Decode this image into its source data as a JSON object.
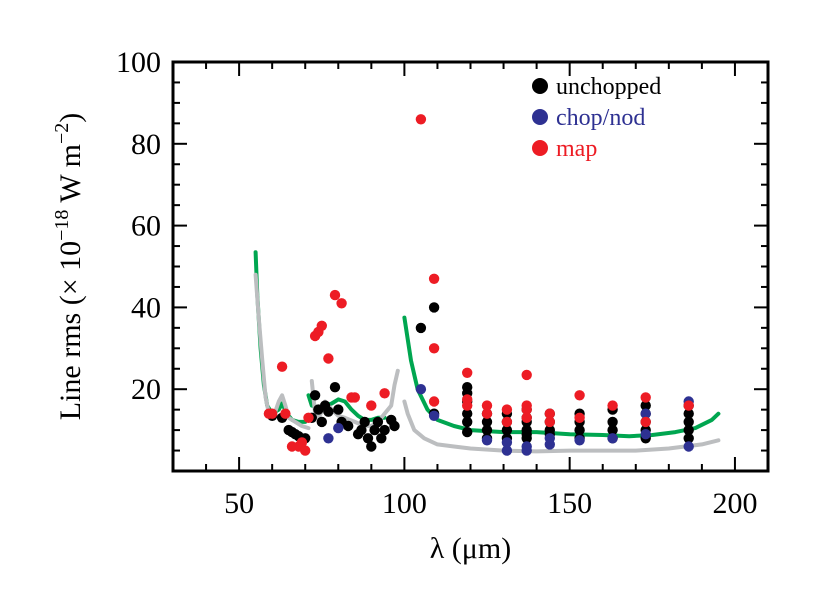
{
  "chart_data": {
    "type": "scatter",
    "xlabel": "λ (μm)",
    "ylabel_parts": {
      "main": "Line rms (× 10",
      "exp1": "−18",
      "mid": " W m",
      "exp2": "−2",
      "end": ")"
    },
    "xlim": [
      30,
      210
    ],
    "ylim": [
      0,
      100
    ],
    "x_ticks": [
      50,
      100,
      150,
      200
    ],
    "y_ticks": [
      20,
      40,
      60,
      80,
      100
    ],
    "y_tick_labels": [
      "20",
      "40",
      "60",
      "80",
      "100"
    ],
    "x_tick_labels": [
      "50",
      "100",
      "150",
      "200"
    ],
    "legend_position": "top-right",
    "series": [
      {
        "name": "unchopped",
        "color": "#000000",
        "points": [
          [
            60,
            13.5
          ],
          [
            63,
            13
          ],
          [
            65,
            10
          ],
          [
            66,
            9.5
          ],
          [
            67,
            9
          ],
          [
            68,
            8.5
          ],
          [
            70,
            8
          ],
          [
            72,
            13
          ],
          [
            73,
            18.5
          ],
          [
            74,
            15
          ],
          [
            75,
            12
          ],
          [
            76,
            16
          ],
          [
            77,
            14.5
          ],
          [
            79,
            20.5
          ],
          [
            80,
            15
          ],
          [
            81,
            12
          ],
          [
            83,
            11
          ],
          [
            86,
            9
          ],
          [
            87,
            10
          ],
          [
            88,
            12
          ],
          [
            89,
            8
          ],
          [
            90,
            6
          ],
          [
            91,
            10
          ],
          [
            92,
            12
          ],
          [
            93,
            8
          ],
          [
            94,
            10
          ],
          [
            96,
            12.5
          ],
          [
            97,
            11
          ],
          [
            105,
            35
          ],
          [
            109,
            40
          ],
          [
            109,
            14
          ],
          [
            119,
            20.5
          ],
          [
            119,
            19
          ],
          [
            119,
            17
          ],
          [
            119,
            14
          ],
          [
            119,
            12
          ],
          [
            119,
            9.5
          ],
          [
            125,
            14
          ],
          [
            125,
            12
          ],
          [
            125,
            10
          ],
          [
            125,
            8
          ],
          [
            131,
            14
          ],
          [
            131,
            12
          ],
          [
            131,
            10
          ],
          [
            131,
            8
          ],
          [
            137,
            15
          ],
          [
            137,
            13
          ],
          [
            137,
            12
          ],
          [
            137,
            10
          ],
          [
            137,
            9
          ],
          [
            137,
            8
          ],
          [
            144,
            14
          ],
          [
            144,
            12
          ],
          [
            144,
            10
          ],
          [
            144,
            9
          ],
          [
            153,
            14
          ],
          [
            153,
            12
          ],
          [
            153,
            10
          ],
          [
            153,
            8
          ],
          [
            163,
            15
          ],
          [
            163,
            12
          ],
          [
            163,
            10
          ],
          [
            163,
            8
          ],
          [
            173,
            16
          ],
          [
            173,
            14
          ],
          [
            173,
            12
          ],
          [
            173,
            10
          ],
          [
            173,
            8
          ],
          [
            186,
            16
          ],
          [
            186,
            14
          ],
          [
            186,
            12
          ],
          [
            186,
            10
          ],
          [
            186,
            8
          ]
        ]
      },
      {
        "name": "chop/nod",
        "color": "#2e3192",
        "points": [
          [
            77,
            8
          ],
          [
            80,
            10.5
          ],
          [
            105,
            20
          ],
          [
            109,
            13.5
          ],
          [
            125,
            7.5
          ],
          [
            131,
            5
          ],
          [
            131,
            7
          ],
          [
            137,
            6
          ],
          [
            137,
            5
          ],
          [
            144,
            6.5
          ],
          [
            144,
            8
          ],
          [
            153,
            7.5
          ],
          [
            163,
            8
          ],
          [
            173,
            14
          ],
          [
            173,
            9
          ],
          [
            186,
            17
          ],
          [
            186,
            6
          ]
        ]
      },
      {
        "name": "map",
        "color": "#ed1c24",
        "points": [
          [
            59,
            14
          ],
          [
            60,
            14
          ],
          [
            63,
            25.5
          ],
          [
            64,
            14
          ],
          [
            66,
            6
          ],
          [
            68,
            6
          ],
          [
            69,
            7
          ],
          [
            70,
            5
          ],
          [
            71,
            13
          ],
          [
            73,
            33
          ],
          [
            74,
            34
          ],
          [
            75,
            35.5
          ],
          [
            77,
            27.5
          ],
          [
            79,
            43
          ],
          [
            81,
            41
          ],
          [
            84,
            18
          ],
          [
            85,
            18
          ],
          [
            90,
            16
          ],
          [
            94,
            19
          ],
          [
            105,
            86
          ],
          [
            109,
            47
          ],
          [
            109,
            30
          ],
          [
            109,
            17
          ],
          [
            119,
            24
          ],
          [
            119,
            17.5
          ],
          [
            119,
            16
          ],
          [
            125,
            16
          ],
          [
            125,
            14
          ],
          [
            131,
            15
          ],
          [
            131,
            12
          ],
          [
            137,
            23.5
          ],
          [
            137,
            16
          ],
          [
            137,
            15
          ],
          [
            137,
            13
          ],
          [
            144,
            14
          ],
          [
            144,
            12
          ],
          [
            153,
            18.5
          ],
          [
            153,
            13
          ],
          [
            163,
            16
          ],
          [
            173,
            18
          ],
          [
            173,
            12
          ],
          [
            186,
            16
          ]
        ]
      }
    ],
    "curves": [
      {
        "color": "#00a650",
        "segments": [
          [
            [
              55,
              53.5
            ],
            [
              55.5,
              43
            ],
            [
              56.5,
              30
            ],
            [
              57.5,
              21
            ],
            [
              58.5,
              16
            ],
            [
              60,
              14
            ],
            [
              62,
              15
            ],
            [
              63,
              16.5
            ],
            [
              64.5,
              14
            ],
            [
              66,
              12.5
            ],
            [
              68,
              12
            ],
            [
              70,
              12
            ]
          ],
          [
            [
              71,
              18.5
            ],
            [
              72,
              16
            ],
            [
              74,
              15.5
            ],
            [
              76,
              16
            ],
            [
              78,
              16.5
            ],
            [
              80,
              17.5
            ],
            [
              82,
              17
            ],
            [
              84,
              15
            ],
            [
              86,
              13.5
            ],
            [
              88,
              12.5
            ],
            [
              90,
              12.5
            ],
            [
              92,
              13
            ],
            [
              94,
              13
            ]
          ],
          [
            [
              100,
              37.5
            ],
            [
              102,
              27
            ],
            [
              104,
              20
            ],
            [
              107,
              15
            ],
            [
              110,
              12.5
            ],
            [
              115,
              11
            ],
            [
              120,
              10
            ],
            [
              130,
              9.5
            ],
            [
              140,
              9.5
            ],
            [
              150,
              9
            ],
            [
              160,
              8.8
            ],
            [
              168,
              8.5
            ],
            [
              175,
              8.8
            ],
            [
              182,
              9.5
            ],
            [
              188,
              10.5
            ],
            [
              193,
              12.5
            ],
            [
              195,
              14
            ]
          ]
        ]
      },
      {
        "color": "#bcbec0",
        "segments": [
          [
            [
              55,
              48
            ],
            [
              56,
              37
            ],
            [
              57,
              27
            ],
            [
              58,
              18
            ],
            [
              59,
              14
            ],
            [
              60.5,
              13.5
            ],
            [
              62,
              17
            ],
            [
              63,
              18.5
            ],
            [
              64,
              16
            ],
            [
              65,
              13
            ],
            [
              67,
              12
            ],
            [
              69,
              11
            ],
            [
              71,
              10.5
            ]
          ],
          [
            [
              72,
              22
            ],
            [
              73,
              14
            ],
            [
              74,
              13
            ],
            [
              75,
              14.5
            ],
            [
              76,
              17
            ],
            [
              78,
              15
            ],
            [
              80,
              13.5
            ],
            [
              82,
              13
            ],
            [
              85,
              12
            ],
            [
              88,
              11
            ],
            [
              90,
              11
            ],
            [
              92,
              12
            ],
            [
              94,
              14
            ],
            [
              96,
              16
            ],
            [
              97,
              21
            ],
            [
              98,
              24.5
            ]
          ],
          [
            [
              100,
              17
            ],
            [
              101,
              14
            ],
            [
              103,
              10
            ],
            [
              106,
              8
            ],
            [
              110,
              6.5
            ],
            [
              115,
              6
            ],
            [
              120,
              5.5
            ],
            [
              130,
              5
            ],
            [
              140,
              4.8
            ],
            [
              150,
              5
            ],
            [
              160,
              5
            ],
            [
              170,
              5
            ],
            [
              180,
              5.5
            ],
            [
              190,
              6.5
            ],
            [
              195,
              7.5
            ]
          ]
        ]
      }
    ],
    "legend": [
      {
        "label": "unchopped",
        "color": "#000000"
      },
      {
        "label": "chop/nod",
        "color": "#2e3192"
      },
      {
        "label": "map",
        "color": "#ed1c24"
      }
    ]
  }
}
